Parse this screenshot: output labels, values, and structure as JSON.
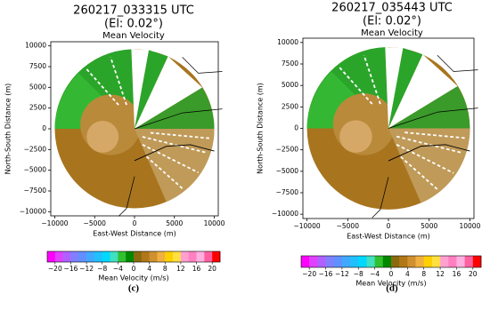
{
  "panels": [
    {
      "title": "260217_033315 UTC",
      "elevation": "(El: 0.02°)",
      "subtitle": "Mean Velocity",
      "xlabel": "East-West Distance (m)",
      "ylabel": "North-South Distance (m)",
      "xlim": [
        -10500,
        10500
      ],
      "ylim": [
        -10500,
        10500
      ],
      "xticks": [
        {
          "value": -10000,
          "label": "−10000"
        },
        {
          "value": -5000,
          "label": "−5000"
        },
        0,
        5000,
        10000
      ],
      "yticks": [
        {
          "value": -10000,
          "label": "−10000"
        },
        {
          "value": -7500,
          "label": "−7500"
        },
        {
          "value": -5000,
          "label": "−5000"
        },
        {
          "value": -2500,
          "label": "−2500"
        },
        0,
        2500,
        5000,
        7500,
        10000
      ],
      "colorbar": {
        "label": "Mean Velocity (m/s)",
        "lim": [
          -22,
          22
        ],
        "ticks": [
          {
            "value": -20,
            "label": "−20"
          },
          {
            "value": -16,
            "label": "−16"
          },
          {
            "value": -12,
            "label": "−12"
          },
          {
            "value": -8,
            "label": "−8"
          },
          {
            "value": -4,
            "label": "−4"
          },
          0,
          4,
          8,
          12,
          16,
          20
        ],
        "colors": [
          "#ff00ff",
          "#e040ff",
          "#b060ff",
          "#8080ff",
          "#6090ff",
          "#40a8ff",
          "#20c0ff",
          "#00d8ff",
          "#40e0c0",
          "#30c030",
          "#008800",
          "#8a6a10",
          "#b07818",
          "#d09030",
          "#f0b040",
          "#ffd000",
          "#ffe040",
          "#ffa0d0",
          "#ff80c0",
          "#ffb0e0",
          "#ff60a0",
          "#ff0000"
        ]
      },
      "caption": "(c)"
    },
    {
      "title": "260217_035443 UTC",
      "elevation": "(El: 0.02°)",
      "subtitle": "Mean Velocity",
      "xlabel": "East-West Distance (m)",
      "ylabel": "North-South Distance (m)",
      "xlim": [
        -10500,
        10500
      ],
      "ylim": [
        -10500,
        10500
      ],
      "xticks": [
        {
          "value": -10000,
          "label": "−10000"
        },
        {
          "value": -5000,
          "label": "−5000"
        },
        0,
        5000,
        10000
      ],
      "yticks": [
        {
          "value": -10000,
          "label": "−10000"
        },
        {
          "value": -7500,
          "label": "−7500"
        },
        {
          "value": -5000,
          "label": "−5000"
        },
        {
          "value": -2500,
          "label": "−2500"
        },
        0,
        2500,
        5000,
        7500,
        10000
      ],
      "colorbar": {
        "label": "Mean Velocity (m/s)",
        "lim": [
          -22,
          22
        ],
        "ticks": [
          {
            "value": -20,
            "label": "−20"
          },
          {
            "value": -16,
            "label": "−16"
          },
          {
            "value": -12,
            "label": "−12"
          },
          {
            "value": -8,
            "label": "−8"
          },
          {
            "value": -4,
            "label": "−4"
          },
          0,
          4,
          8,
          12,
          16,
          20
        ],
        "colors": [
          "#ff00ff",
          "#e040ff",
          "#b060ff",
          "#8080ff",
          "#6090ff",
          "#40a8ff",
          "#20c0ff",
          "#00d8ff",
          "#40e0c0",
          "#30c030",
          "#008800",
          "#8a6a10",
          "#b07818",
          "#d09030",
          "#f0b040",
          "#ffd000",
          "#ffe040",
          "#ffa0d0",
          "#ff80c0",
          "#ffb0e0",
          "#ff60a0",
          "#ff0000"
        ]
      },
      "caption": "(d)"
    }
  ]
}
